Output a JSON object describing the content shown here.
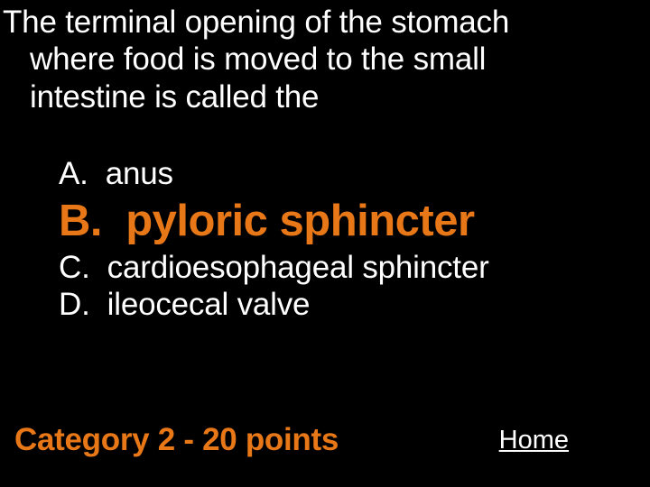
{
  "question": {
    "line1": "The terminal opening of the stomach",
    "line2": "where food is moved to the small",
    "line3": "intestine is called the",
    "text_color": "#ffffff",
    "fontsize": 35
  },
  "options": {
    "a": {
      "letter": "A.",
      "text": "anus",
      "is_answer": false
    },
    "b": {
      "letter": "B.",
      "text": "pyloric sphincter",
      "is_answer": true
    },
    "c": {
      "letter": "C.",
      "text": "cardioesophageal sphincter",
      "is_answer": false
    },
    "d": {
      "letter": "D.",
      "text": "ileocecal valve",
      "is_answer": false
    },
    "regular_color": "#ffffff",
    "regular_fontsize": 35,
    "answer_color": "#e87817",
    "answer_fontsize": 49,
    "answer_fontweight": "bold"
  },
  "footer": {
    "category": "Category 2 - 20 points",
    "category_color": "#e87817",
    "category_fontsize": 35,
    "home_label": "Home",
    "home_color": "#ffffff",
    "home_fontsize": 29
  },
  "background_color": "#000000"
}
